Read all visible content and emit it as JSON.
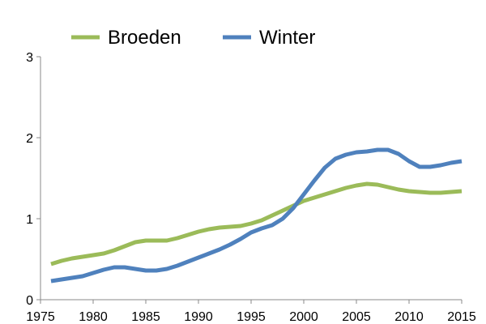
{
  "chart_data": {
    "type": "line",
    "title": "",
    "xlabel": "",
    "ylabel": "",
    "xlim": [
      1975,
      2015
    ],
    "ylim": [
      0,
      3
    ],
    "grid": false,
    "legend_position": "top",
    "x_ticks": [
      "1975",
      "1980",
      "1985",
      "1990",
      "1995",
      "2000",
      "2005",
      "2010",
      "2015"
    ],
    "y_ticks": [
      "0",
      "1",
      "2",
      "3"
    ],
    "x": [
      1976,
      1977,
      1978,
      1979,
      1980,
      1981,
      1982,
      1983,
      1984,
      1985,
      1986,
      1987,
      1988,
      1989,
      1990,
      1991,
      1992,
      1993,
      1994,
      1995,
      1996,
      1997,
      1998,
      1999,
      2000,
      2001,
      2002,
      2003,
      2004,
      2005,
      2006,
      2007,
      2008,
      2009,
      2010,
      2011,
      2012,
      2013,
      2014,
      2015
    ],
    "series": [
      {
        "name": "Broeden",
        "color": "#9bbb59",
        "values": [
          0.44,
          0.48,
          0.51,
          0.53,
          0.55,
          0.57,
          0.61,
          0.66,
          0.71,
          0.73,
          0.73,
          0.73,
          0.76,
          0.8,
          0.84,
          0.87,
          0.89,
          0.9,
          0.91,
          0.94,
          0.98,
          1.04,
          1.1,
          1.16,
          1.22,
          1.26,
          1.3,
          1.34,
          1.38,
          1.41,
          1.43,
          1.42,
          1.39,
          1.36,
          1.34,
          1.33,
          1.32,
          1.32,
          1.33,
          1.34
        ]
      },
      {
        "name": "Winter",
        "color": "#4f81bd",
        "values": [
          0.23,
          0.25,
          0.27,
          0.29,
          0.33,
          0.37,
          0.4,
          0.4,
          0.38,
          0.36,
          0.36,
          0.38,
          0.42,
          0.47,
          0.52,
          0.57,
          0.62,
          0.68,
          0.75,
          0.83,
          0.88,
          0.92,
          1.0,
          1.13,
          1.3,
          1.47,
          1.63,
          1.74,
          1.79,
          1.82,
          1.83,
          1.85,
          1.85,
          1.8,
          1.71,
          1.64,
          1.64,
          1.66,
          1.69,
          1.71
        ]
      }
    ]
  }
}
